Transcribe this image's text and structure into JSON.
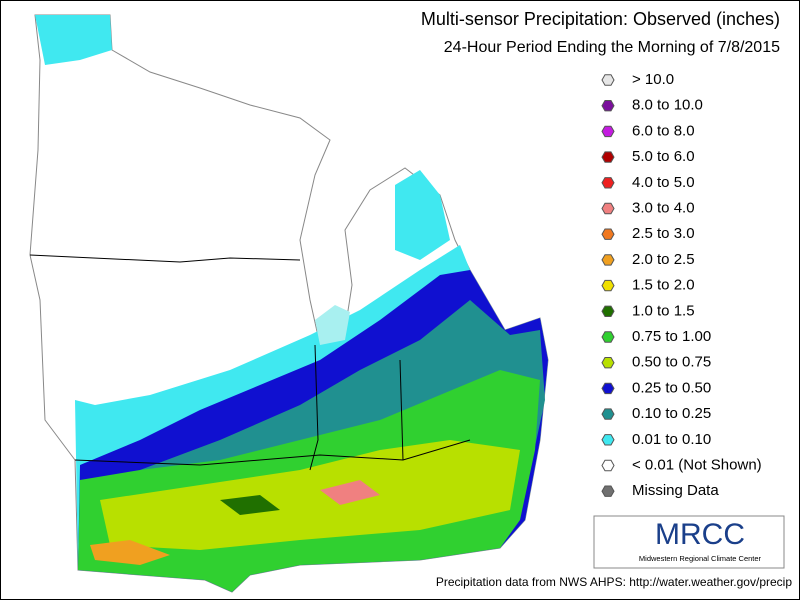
{
  "header": {
    "title": "Multi-sensor Precipitation:  Observed (inches)",
    "subtitle": "24-Hour Period Ending the Morning of 7/8/2015"
  },
  "legend": {
    "items": [
      {
        "label": "> 10.0",
        "color": "#e6e6e6"
      },
      {
        "label": "8.0 to 10.0",
        "color": "#7a0f9c"
      },
      {
        "label": "6.0 to 8.0",
        "color": "#c41be0"
      },
      {
        "label": "5.0 to 6.0",
        "color": "#b00000"
      },
      {
        "label": "4.0 to 5.0",
        "color": "#ee2020"
      },
      {
        "label": "3.0 to 4.0",
        "color": "#f08080"
      },
      {
        "label": "2.5 to 3.0",
        "color": "#f07820"
      },
      {
        "label": "2.0 to 2.5",
        "color": "#f0a020"
      },
      {
        "label": "1.5 to 2.0",
        "color": "#f0e000"
      },
      {
        "label": "1.0 to 1.5",
        "color": "#207000"
      },
      {
        "label": "0.75 to 1.00",
        "color": "#30d030"
      },
      {
        "label": "0.50 to 0.75",
        "color": "#b8e000"
      },
      {
        "label": "0.25 to 0.50",
        "color": "#1010d0"
      },
      {
        "label": "0.10 to 0.25",
        "color": "#209090"
      },
      {
        "label": "0.01 to 0.10",
        "color": "#40e8f0"
      },
      {
        "label": "< 0.01 (Not Shown)",
        "color": "#ffffff"
      },
      {
        "label": "Missing Data",
        "color": "#707070"
      }
    ]
  },
  "logo": {
    "name": "MRCC",
    "subtitle": "Midwestern Regional Climate Center"
  },
  "footer": "Precipitation data from NWS AHPS: http://water.weather.gov/precip"
}
